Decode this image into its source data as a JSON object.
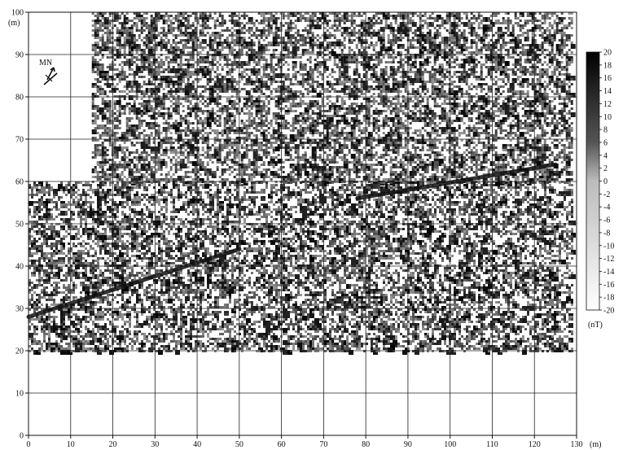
{
  "chart_data": {
    "type": "heatmap",
    "title": "",
    "x_unit": "(m)",
    "y_unit": "(m)",
    "x_ticks": [
      0,
      10,
      20,
      30,
      40,
      50,
      60,
      70,
      80,
      90,
      100,
      110,
      120,
      130
    ],
    "y_ticks": [
      0,
      10,
      20,
      30,
      40,
      50,
      60,
      70,
      80,
      90,
      100
    ],
    "xlim": [
      0,
      130
    ],
    "ylim": [
      0,
      100
    ],
    "grid": true,
    "colorbar": {
      "unit": "(nT)",
      "min": -20,
      "max": 20,
      "ticks": [
        20,
        18,
        16,
        14,
        12,
        10,
        8,
        6,
        4,
        2,
        0,
        -2,
        -4,
        -6,
        -8,
        -10,
        -12,
        -14,
        -16,
        -18,
        -20
      ],
      "low_color": "#ffffff",
      "high_color": "#000000",
      "placement": "right"
    },
    "north_arrow": {
      "label": "MN",
      "placement": "top-left"
    },
    "survey_coverage": [
      {
        "x": [
          15,
          129
        ],
        "y": [
          60,
          100
        ]
      },
      {
        "x": [
          0,
          129
        ],
        "y": [
          20,
          60
        ]
      }
    ],
    "linear_features": [
      {
        "from": [
          0,
          28
        ],
        "to": [
          50,
          44
        ]
      },
      {
        "from": [
          78,
          56
        ],
        "to": [
          125,
          64
        ]
      }
    ]
  }
}
